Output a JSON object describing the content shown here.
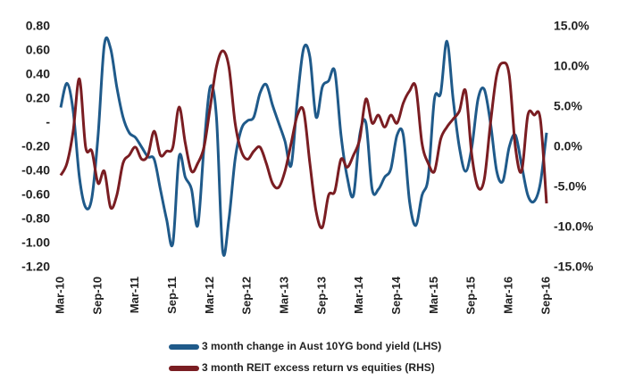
{
  "chart_data": {
    "type": "line",
    "categories": [
      "Mar-10",
      null,
      null,
      null,
      null,
      null,
      "Sep-10",
      null,
      null,
      null,
      null,
      null,
      "Mar-11",
      null,
      null,
      null,
      null,
      null,
      "Sep-11",
      null,
      null,
      null,
      null,
      null,
      "Mar-12",
      null,
      null,
      null,
      null,
      null,
      "Sep-12",
      null,
      null,
      null,
      null,
      null,
      "Mar-13",
      null,
      null,
      null,
      null,
      null,
      "Sep-13",
      null,
      null,
      null,
      null,
      null,
      "Mar-14",
      null,
      null,
      null,
      null,
      null,
      "Sep-14",
      null,
      null,
      null,
      null,
      null,
      "Mar-15",
      null,
      null,
      null,
      null,
      null,
      "Sep-15",
      null,
      null,
      null,
      null,
      null,
      "Mar-16",
      null,
      null,
      null,
      null,
      null,
      "Sep-16"
    ],
    "series": [
      {
        "name": "3 month change in Aust 10YG bond yield (LHS)",
        "color": "#1f5a8a",
        "axis": "y",
        "values": [
          0.13,
          0.33,
          0.1,
          -0.45,
          -0.7,
          -0.62,
          -0.1,
          0.65,
          0.62,
          0.3,
          0.05,
          -0.08,
          -0.12,
          -0.2,
          -0.28,
          -0.3,
          -0.55,
          -0.8,
          -1.0,
          -0.28,
          -0.45,
          -0.55,
          -0.85,
          -0.2,
          0.3,
          0.05,
          -1.06,
          -0.8,
          -0.3,
          -0.05,
          0.02,
          0.05,
          0.25,
          0.32,
          0.15,
          0.0,
          -0.15,
          -0.35,
          0.2,
          0.62,
          0.55,
          0.05,
          0.3,
          0.35,
          0.43,
          -0.1,
          -0.45,
          -0.6,
          -0.1,
          0.0,
          -0.55,
          -0.55,
          -0.45,
          -0.38,
          -0.1,
          -0.1,
          -0.65,
          -0.85,
          -0.6,
          -0.45,
          0.2,
          0.25,
          0.68,
          0.2,
          -0.2,
          -0.4,
          -0.2,
          0.2,
          0.28,
          0.0,
          -0.4,
          -0.48,
          -0.2,
          -0.1,
          -0.35,
          -0.6,
          -0.65,
          -0.5,
          -0.08
        ]
      },
      {
        "name": "3 month REIT excess return vs equities (RHS)",
        "color": "#7a1d22",
        "axis": "y2",
        "values": [
          -3.5,
          -2,
          2,
          8.5,
          0,
          -0.5,
          -4.5,
          -3,
          -7.5,
          -6,
          -2,
          -1,
          0,
          -1.5,
          -1,
          2,
          -1,
          -0.5,
          0,
          5,
          0.5,
          -3,
          -2,
          0,
          5,
          10,
          12,
          10,
          3,
          -0.5,
          -1.5,
          -0.5,
          0,
          -2,
          -4.5,
          -5,
          -3,
          0.5,
          4,
          4.5,
          -2,
          -8,
          -10,
          -6,
          -5.5,
          -1.5,
          -2.5,
          -1,
          1,
          6,
          3,
          4,
          2.5,
          4,
          3,
          5.5,
          7,
          7.5,
          0.5,
          -2,
          -3,
          1,
          2.5,
          3.5,
          4.5,
          7,
          -1,
          -5,
          -4,
          3,
          9,
          10.5,
          9,
          0,
          -3,
          4,
          4,
          3.5,
          -7
        ]
      }
    ],
    "ylim": [
      -1.2,
      0.8
    ],
    "yticks": [
      {
        "value": 0.8,
        "label": "0.80"
      },
      {
        "value": 0.6,
        "label": "0.60"
      },
      {
        "value": 0.4,
        "label": "0.40"
      },
      {
        "value": 0.2,
        "label": "0.20"
      },
      {
        "value": 0,
        "label": "-"
      },
      {
        "value": -0.2,
        "label": "-0.20"
      },
      {
        "value": -0.4,
        "label": "-0.40"
      },
      {
        "value": -0.6,
        "label": "-0.60"
      },
      {
        "value": -0.8,
        "label": "-0.80"
      },
      {
        "value": -1.0,
        "label": "-1.00"
      },
      {
        "value": -1.2,
        "label": "-1.20"
      }
    ],
    "y2lim": [
      -15,
      15
    ],
    "y2ticks": [
      {
        "value": 15,
        "label": "15.0%"
      },
      {
        "value": 10,
        "label": "10.0%"
      },
      {
        "value": 5,
        "label": "5.0%"
      },
      {
        "value": 0,
        "label": "0.0%"
      },
      {
        "value": -5,
        "label": "-5.0%"
      },
      {
        "value": -10,
        "label": "-10.0%"
      },
      {
        "value": -15,
        "label": "-15.0%"
      }
    ],
    "legend": "bottom"
  }
}
